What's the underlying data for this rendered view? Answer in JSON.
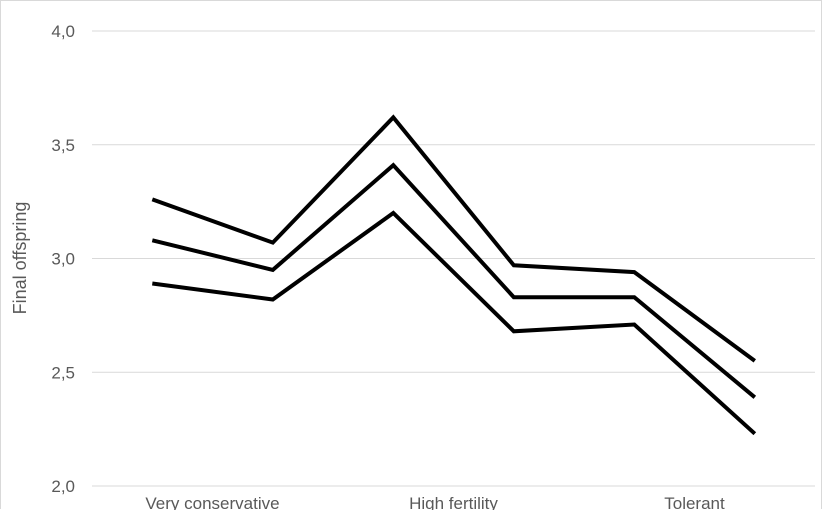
{
  "chart_data": {
    "type": "line",
    "title": "",
    "xlabel": "",
    "ylabel": "Final offspring",
    "ylim": [
      2.0,
      4.0
    ],
    "yticks": [
      "2,0",
      "2,5",
      "3,0",
      "3,5",
      "4,0"
    ],
    "ytick_values": [
      2.0,
      2.5,
      3.0,
      3.5,
      4.0
    ],
    "categories": [
      "Very conservative",
      "",
      "High fertility",
      "",
      "Tolerant",
      ""
    ],
    "xtick_labels": [
      "Very conservative",
      "High fertility",
      "Tolerant"
    ],
    "grid": true,
    "legend": "none",
    "series": [
      {
        "values": [
          3.26,
          3.07,
          3.62,
          2.97,
          2.94,
          2.55
        ]
      },
      {
        "values": [
          3.08,
          2.95,
          3.41,
          2.83,
          2.83,
          2.39
        ]
      },
      {
        "values": [
          2.89,
          2.82,
          3.2,
          2.68,
          2.71,
          2.23
        ]
      }
    ],
    "line_color": "#000000"
  }
}
